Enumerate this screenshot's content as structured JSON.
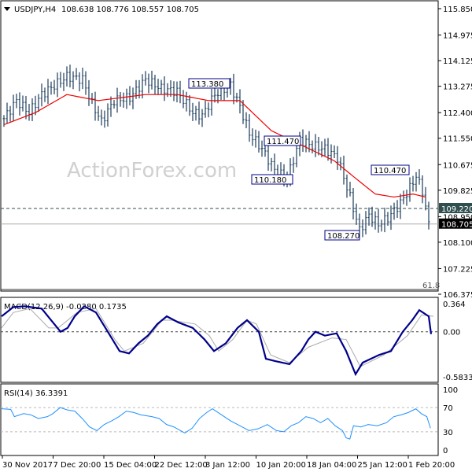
{
  "header": {
    "symbol": "USDJPY,H4",
    "ohlc": "108.638 108.776 108.557 108.705"
  },
  "watermark": "ActionForex.com",
  "chart_data": {
    "type": "candlestick",
    "title": "USDJPY,H4",
    "price_axis": {
      "ticks": [
        "115.850",
        "114.975",
        "114.125",
        "113.275",
        "112.400",
        "111.550",
        "110.675",
        "109.825",
        "108.950",
        "108.100",
        "107.225",
        "106.375"
      ],
      "range": [
        106.375,
        115.85
      ]
    },
    "x_ticks": [
      "30 Nov 2017",
      "7 Dec 20:00",
      "15 Dec 04:00",
      "22 Dec 12:00",
      "3 Jan 12:00",
      "10 Jan 20:00",
      "18 Jan 04:00",
      "25 Jan 12:00",
      "1 Feb 20:00"
    ],
    "bars_per_tick": 16,
    "price_keypoints": [
      [
        0,
        112.2
      ],
      [
        4,
        112.8
      ],
      [
        8,
        112.4
      ],
      [
        12,
        113.0
      ],
      [
        16,
        113.3
      ],
      [
        20,
        113.6
      ],
      [
        25,
        113.5
      ],
      [
        28,
        112.7
      ],
      [
        31,
        112.1
      ],
      [
        35,
        112.8
      ],
      [
        40,
        112.9
      ],
      [
        45,
        113.5
      ],
      [
        50,
        113.2
      ],
      [
        55,
        113.1
      ],
      [
        60,
        112.4
      ],
      [
        63,
        112.3
      ],
      [
        67,
        113.0
      ],
      [
        72,
        113.3
      ],
      [
        75,
        112.6
      ],
      [
        78,
        111.7
      ],
      [
        82,
        111.2
      ],
      [
        86,
        110.5
      ],
      [
        90,
        110.2
      ],
      [
        94,
        111.5
      ],
      [
        98,
        111.3
      ],
      [
        102,
        111.2
      ],
      [
        106,
        110.9
      ],
      [
        110,
        109.6
      ],
      [
        113,
        108.5
      ],
      [
        116,
        109.0
      ],
      [
        119,
        108.7
      ],
      [
        122,
        108.9
      ],
      [
        126,
        109.4
      ],
      [
        129,
        109.9
      ],
      [
        131,
        110.3
      ],
      [
        133,
        109.8
      ],
      [
        135,
        108.705
      ]
    ],
    "ma_keypoints": [
      [
        0,
        112.0
      ],
      [
        10,
        112.4
      ],
      [
        20,
        113.0
      ],
      [
        30,
        112.8
      ],
      [
        45,
        113.0
      ],
      [
        55,
        113.0
      ],
      [
        65,
        112.8
      ],
      [
        75,
        112.8
      ],
      [
        85,
        111.8
      ],
      [
        95,
        111.3
      ],
      [
        105,
        110.8
      ],
      [
        112,
        110.2
      ],
      [
        118,
        109.7
      ],
      [
        124,
        109.6
      ],
      [
        130,
        109.7
      ],
      [
        134,
        109.6
      ]
    ],
    "current_price": "108.705",
    "level_line": "109.220",
    "fib_label": "61.8",
    "annotations": [
      "113.380",
      "111.470",
      "110.180",
      "108.270",
      "110.470"
    ],
    "macd": {
      "label": "MACD(12,26,9) -0.0280 0.1735",
      "ticks": [
        "0.364",
        "0.00",
        "-0.5833"
      ],
      "range": [
        -0.5833,
        0.364
      ],
      "main": [
        [
          0,
          0.2
        ],
        [
          5,
          0.32
        ],
        [
          10,
          0.33
        ],
        [
          17,
          0.3
        ],
        [
          21,
          0.15
        ],
        [
          25,
          0.0
        ],
        [
          28,
          0.05
        ],
        [
          31,
          0.2
        ],
        [
          35,
          0.33
        ],
        [
          40,
          0.25
        ],
        [
          45,
          0.0
        ],
        [
          50,
          -0.25
        ],
        [
          54,
          -0.28
        ],
        [
          58,
          -0.15
        ],
        [
          62,
          -0.05
        ],
        [
          66,
          0.1
        ],
        [
          70,
          0.2
        ],
        [
          75,
          0.12
        ],
        [
          81,
          0.05
        ],
        [
          86,
          -0.1
        ],
        [
          90,
          -0.25
        ],
        [
          95,
          -0.15
        ],
        [
          100,
          0.05
        ],
        [
          104,
          0.15
        ],
        [
          109,
          0.0
        ],
        [
          112,
          -0.35
        ],
        [
          116,
          -0.38
        ],
        [
          122,
          -0.42
        ],
        [
          127,
          -0.25
        ],
        [
          130,
          -0.1
        ],
        [
          133,
          -0.0
        ],
        [
          137,
          -0.05
        ],
        [
          142,
          -0.02
        ],
        [
          146,
          -0.25
        ],
        [
          150,
          -0.55
        ],
        [
          153,
          -0.4
        ],
        [
          160,
          -0.3
        ],
        [
          165,
          -0.25
        ],
        [
          170,
          0.0
        ],
        [
          174,
          0.15
        ],
        [
          177,
          0.28
        ],
        [
          181,
          0.2
        ],
        [
          182,
          -0.03
        ]
      ],
      "signal": [
        [
          0,
          0.05
        ],
        [
          5,
          0.25
        ],
        [
          12,
          0.3
        ],
        [
          20,
          0.05
        ],
        [
          24,
          0.05
        ],
        [
          32,
          0.25
        ],
        [
          40,
          0.3
        ],
        [
          48,
          -0.1
        ],
        [
          52,
          -0.25
        ],
        [
          60,
          -0.15
        ],
        [
          68,
          0.15
        ],
        [
          72,
          0.15
        ],
        [
          82,
          0.1
        ],
        [
          88,
          -0.05
        ],
        [
          92,
          -0.25
        ],
        [
          98,
          -0.1
        ],
        [
          104,
          0.15
        ],
        [
          108,
          0.1
        ],
        [
          114,
          -0.3
        ],
        [
          122,
          -0.4
        ],
        [
          130,
          -0.2
        ],
        [
          140,
          -0.08
        ],
        [
          146,
          -0.1
        ],
        [
          152,
          -0.45
        ],
        [
          162,
          -0.3
        ],
        [
          172,
          -0.05
        ],
        [
          178,
          0.22
        ],
        [
          183,
          0.2
        ]
      ]
    },
    "rsi": {
      "label": "RSI(14) 36.3391",
      "ticks": [
        "100",
        "70",
        "30",
        "0"
      ],
      "levels": [
        70,
        30
      ],
      "values": [
        [
          0,
          68
        ],
        [
          5,
          67
        ],
        [
          7,
          55
        ],
        [
          12,
          60
        ],
        [
          16,
          58
        ],
        [
          20,
          52
        ],
        [
          25,
          55
        ],
        [
          28,
          60
        ],
        [
          32,
          70
        ],
        [
          36,
          66
        ],
        [
          40,
          64
        ],
        [
          44,
          52
        ],
        [
          48,
          38
        ],
        [
          52,
          32
        ],
        [
          56,
          42
        ],
        [
          60,
          48
        ],
        [
          64,
          55
        ],
        [
          68,
          64
        ],
        [
          72,
          62
        ],
        [
          76,
          58
        ],
        [
          82,
          55
        ],
        [
          86,
          52
        ],
        [
          90,
          42
        ],
        [
          94,
          38
        ],
        [
          100,
          28
        ],
        [
          104,
          36
        ],
        [
          108,
          52
        ],
        [
          112,
          62
        ],
        [
          115,
          68
        ],
        [
          120,
          58
        ],
        [
          125,
          48
        ],
        [
          130,
          40
        ],
        [
          135,
          32
        ],
        [
          140,
          35
        ],
        [
          145,
          42
        ],
        [
          150,
          32
        ],
        [
          154,
          30
        ],
        [
          158,
          40
        ],
        [
          162,
          45
        ],
        [
          166,
          55
        ],
        [
          170,
          52
        ],
        [
          174,
          45
        ],
        [
          178,
          52
        ],
        [
          182,
          40
        ],
        [
          186,
          32
        ],
        [
          188,
          20
        ],
        [
          190,
          18
        ],
        [
          192,
          40
        ],
        [
          196,
          38
        ],
        [
          200,
          42
        ],
        [
          205,
          40
        ],
        [
          210,
          45
        ],
        [
          214,
          55
        ],
        [
          218,
          58
        ],
        [
          222,
          62
        ],
        [
          226,
          68
        ],
        [
          229,
          60
        ],
        [
          232,
          55
        ],
        [
          234,
          36
        ]
      ]
    }
  }
}
